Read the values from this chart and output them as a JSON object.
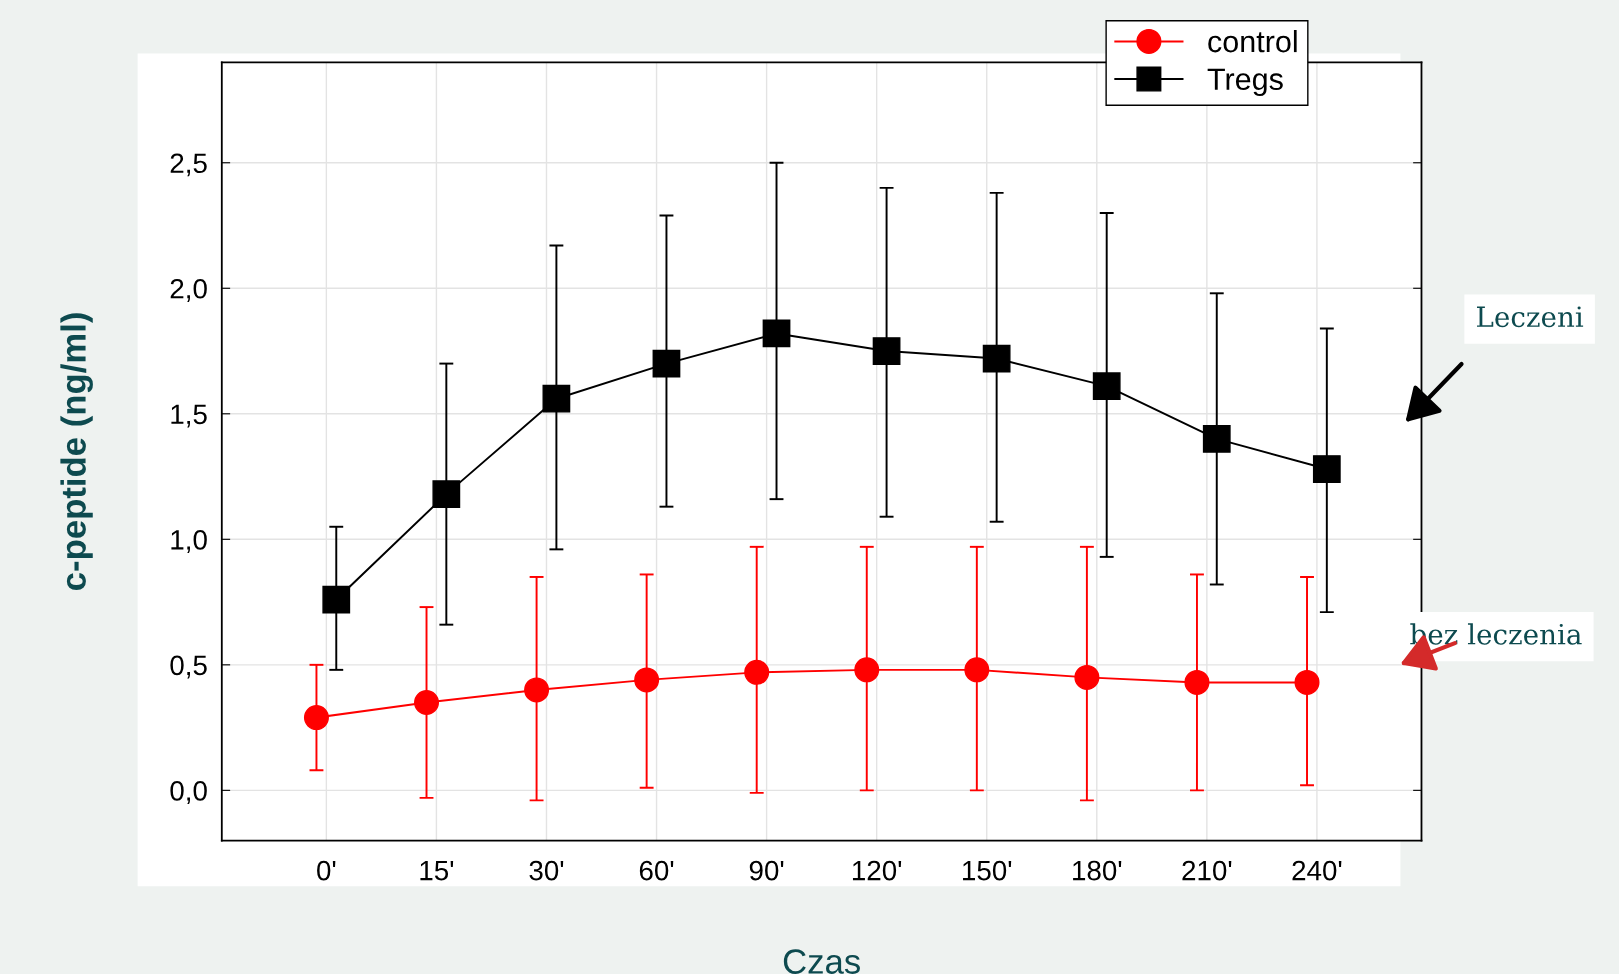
{
  "chart_data": {
    "type": "line",
    "xlabel": "Czas",
    "ylabel": "c-peptide (ng/ml)",
    "categories": [
      "0'",
      "15'",
      "30'",
      "60'",
      "90'",
      "120'",
      "150'",
      "180'",
      "210'",
      "240'"
    ],
    "series": [
      {
        "name": "control",
        "color": "#ff0000",
        "marker": "circle",
        "values": [
          0.29,
          0.35,
          0.4,
          0.44,
          0.47,
          0.48,
          0.48,
          0.45,
          0.43,
          0.43
        ],
        "errors": [
          [
            0.08,
            0.5
          ],
          [
            -0.03,
            0.73
          ],
          [
            -0.04,
            0.85
          ],
          [
            0.01,
            0.86
          ],
          [
            -0.01,
            0.97
          ],
          [
            0.0,
            0.97
          ],
          [
            0.0,
            0.97
          ],
          [
            -0.04,
            0.97
          ],
          [
            0.0,
            0.86
          ],
          [
            0.02,
            0.85
          ]
        ]
      },
      {
        "name": "Tregs",
        "color": "#000000",
        "marker": "square",
        "values": [
          0.76,
          1.18,
          1.56,
          1.7,
          1.82,
          1.75,
          1.72,
          1.61,
          1.4,
          1.28
        ],
        "errors": [
          [
            0.48,
            1.05
          ],
          [
            0.66,
            1.7
          ],
          [
            0.96,
            2.17
          ],
          [
            1.13,
            2.29
          ],
          [
            1.16,
            2.5
          ],
          [
            1.09,
            2.4
          ],
          [
            1.07,
            2.38
          ],
          [
            0.93,
            2.3
          ],
          [
            0.82,
            1.98
          ],
          [
            0.71,
            1.84
          ]
        ]
      }
    ],
    "ylim": [
      -0.2,
      2.9
    ],
    "yticks": [
      {
        "value": 0,
        "label": "0,0"
      },
      {
        "value": 0.5,
        "label": "0,5"
      },
      {
        "value": 1,
        "label": "1,0"
      },
      {
        "value": 1.5,
        "label": "1,5"
      },
      {
        "value": 2,
        "label": "2,0"
      },
      {
        "value": 2.5,
        "label": "2,5"
      }
    ],
    "grid": true,
    "legend": "top right",
    "annotations": [
      "Leczeni",
      "bez leczenia"
    ]
  }
}
